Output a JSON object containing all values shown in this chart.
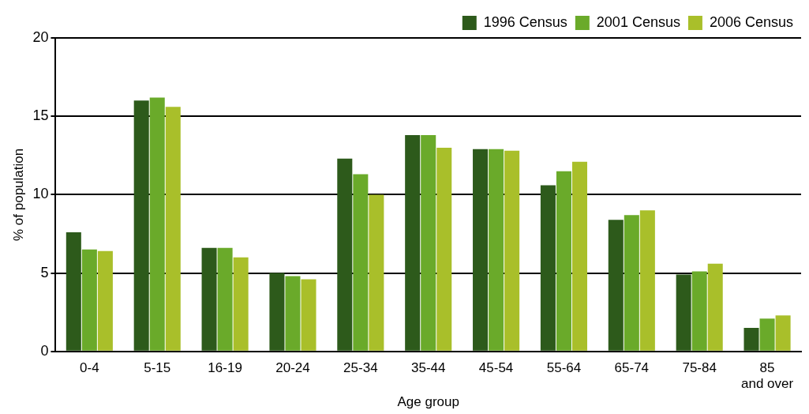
{
  "chart_data": {
    "type": "bar",
    "xlabel": "Age group",
    "ylabel": "% of population",
    "categories": [
      "0-4",
      "5-15",
      "16-19",
      "20-24",
      "25-34",
      "35-44",
      "45-54",
      "55-64",
      "65-74",
      "75-84",
      "85 and over"
    ],
    "series": [
      {
        "name": "1996 Census",
        "color": "#2d5a1b",
        "values": [
          7.6,
          16.0,
          6.6,
          5.0,
          12.3,
          13.8,
          12.9,
          10.6,
          8.4,
          4.9,
          1.5
        ]
      },
      {
        "name": "2001 Census",
        "color": "#6aaa2a",
        "values": [
          6.5,
          16.2,
          6.6,
          4.8,
          11.3,
          13.8,
          12.9,
          11.5,
          8.7,
          5.1,
          2.1
        ]
      },
      {
        "name": "2006 Census",
        "color": "#a9bf2a",
        "values": [
          6.4,
          15.6,
          6.0,
          4.6,
          10.0,
          13.0,
          12.8,
          12.1,
          9.0,
          5.6,
          2.3
        ]
      }
    ],
    "ylim": [
      0,
      20
    ],
    "yticks": [
      0,
      5,
      10,
      15,
      20
    ],
    "grid": "y",
    "legend": "top right"
  }
}
